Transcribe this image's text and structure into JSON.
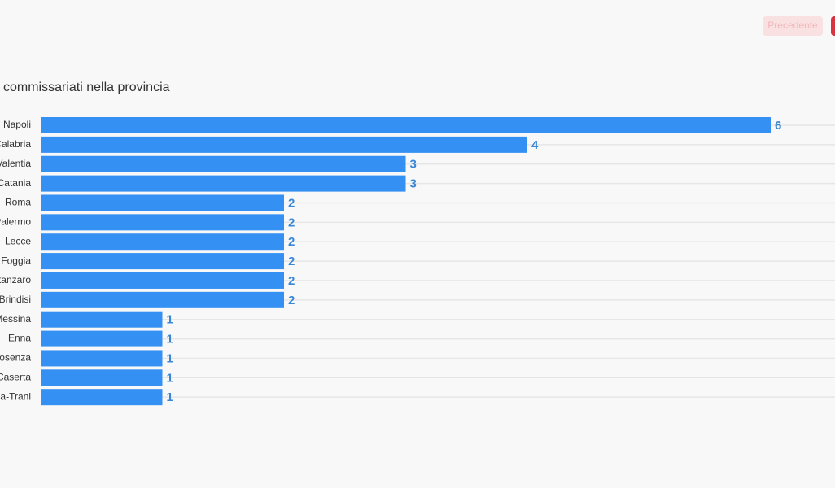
{
  "chart_data": {
    "type": "bar",
    "orientation": "horizontal",
    "title": "commissariati nella provincia",
    "categories": [
      "Napoli",
      "Reggio Calabria",
      "Vibo Valentia",
      "Catania",
      "Roma",
      "Palermo",
      "Lecce",
      "Foggia",
      "Catanzaro",
      "Brindisi",
      "Messina",
      "Enna",
      "Cosenza",
      "Caserta",
      "Barletta-Andria-Trani"
    ],
    "values": [
      6,
      4,
      3,
      3,
      2,
      2,
      2,
      2,
      2,
      2,
      1,
      1,
      1,
      1,
      1
    ],
    "color": "#3590f3",
    "xlim": [
      0,
      6
    ]
  },
  "nav": {
    "previous": "Precedente"
  }
}
